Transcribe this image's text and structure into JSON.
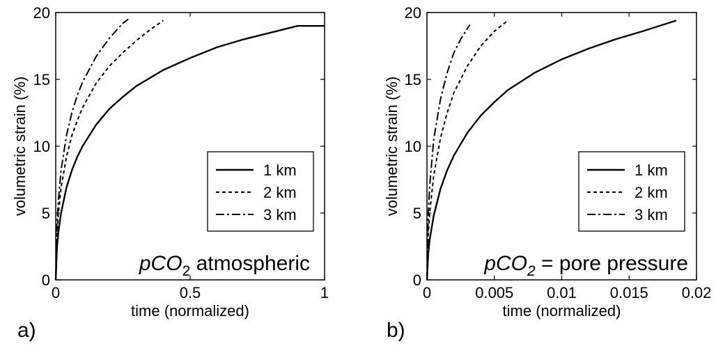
{
  "chart_data": [
    {
      "type": "line",
      "panel_label": "a)",
      "xlabel": "time (normalized)",
      "ylabel": "volumetric strain (%)",
      "xlim": [
        0,
        1
      ],
      "ylim": [
        0,
        20
      ],
      "xticks": [
        0,
        0.5,
        1
      ],
      "xtick_labels": [
        "0",
        "0.5",
        "1"
      ],
      "yticks": [
        0,
        5,
        10,
        15,
        20
      ],
      "ytick_labels": [
        "0",
        "5",
        "10",
        "15",
        "20"
      ],
      "grid": false,
      "legend_position": "right",
      "annotation": {
        "prefix": "pCO",
        "sub": "2",
        "suffix": " atmospheric"
      },
      "series": [
        {
          "name": "1 km",
          "style": "solid",
          "x": [
            0,
            0.005,
            0.01,
            0.02,
            0.04,
            0.06,
            0.08,
            0.1,
            0.15,
            0.2,
            0.25,
            0.3,
            0.4,
            0.5,
            0.6,
            0.7,
            0.8,
            0.9,
            1.0
          ],
          "y": [
            0,
            2.5,
            3.6,
            5.0,
            6.9,
            8.2,
            9.2,
            10.0,
            11.6,
            12.8,
            13.7,
            14.5,
            15.7,
            16.6,
            17.4,
            18.0,
            18.5,
            19.0,
            19.0
          ]
        },
        {
          "name": "2 km",
          "style": "dashed",
          "x": [
            0,
            0.005,
            0.01,
            0.02,
            0.04,
            0.06,
            0.08,
            0.1,
            0.15,
            0.2,
            0.25,
            0.3,
            0.35,
            0.4
          ],
          "y": [
            0,
            3.5,
            5.0,
            6.9,
            9.2,
            10.8,
            11.9,
            12.9,
            14.7,
            16.0,
            17.0,
            17.9,
            18.7,
            19.4
          ]
        },
        {
          "name": "3 km",
          "style": "dashdot",
          "x": [
            0,
            0.005,
            0.01,
            0.02,
            0.04,
            0.06,
            0.08,
            0.1,
            0.15,
            0.2,
            0.25,
            0.27
          ],
          "y": [
            0,
            4.3,
            6.0,
            8.2,
            10.8,
            12.5,
            13.8,
            14.8,
            16.7,
            18.1,
            19.2,
            19.5
          ]
        }
      ]
    },
    {
      "type": "line",
      "panel_label": "b)",
      "xlabel": "time (normalized)",
      "ylabel": "volumetric strain (%)",
      "xlim": [
        0,
        0.02
      ],
      "ylim": [
        0,
        20
      ],
      "xticks": [
        0,
        0.005,
        0.01,
        0.015,
        0.02
      ],
      "xtick_labels": [
        "0",
        "0.005",
        "0.01",
        "0.015",
        "0.02"
      ],
      "yticks": [
        0,
        5,
        10,
        15,
        20
      ],
      "ytick_labels": [
        "0",
        "5",
        "10",
        "15",
        "20"
      ],
      "grid": false,
      "legend_position": "right",
      "annotation": {
        "prefix": "pCO",
        "sub": "2",
        "suffix": " = pore pressure"
      },
      "series": [
        {
          "name": "1 km",
          "style": "solid",
          "x": [
            0,
            0.0001,
            0.0002,
            0.0005,
            0.001,
            0.0015,
            0.002,
            0.003,
            0.004,
            0.005,
            0.006,
            0.008,
            0.01,
            0.012,
            0.014,
            0.016,
            0.0185
          ],
          "y": [
            0,
            2.0,
            3.0,
            4.8,
            6.8,
            8.2,
            9.3,
            11.0,
            12.3,
            13.3,
            14.2,
            15.5,
            16.5,
            17.3,
            18.0,
            18.6,
            19.4
          ]
        },
        {
          "name": "2 km",
          "style": "dashed",
          "x": [
            0,
            0.0001,
            0.0002,
            0.0005,
            0.001,
            0.0015,
            0.002,
            0.003,
            0.004,
            0.005,
            0.006
          ],
          "y": [
            0,
            3.5,
            5.0,
            7.8,
            10.6,
            12.5,
            14.0,
            16.0,
            17.5,
            18.6,
            19.4
          ]
        },
        {
          "name": "3 km",
          "style": "dashdot",
          "x": [
            0,
            0.0001,
            0.0002,
            0.0005,
            0.001,
            0.0015,
            0.002,
            0.0025,
            0.003,
            0.0032
          ],
          "y": [
            0,
            5.0,
            7.0,
            10.5,
            13.5,
            15.5,
            17.0,
            18.0,
            18.8,
            19.1
          ]
        }
      ]
    }
  ]
}
